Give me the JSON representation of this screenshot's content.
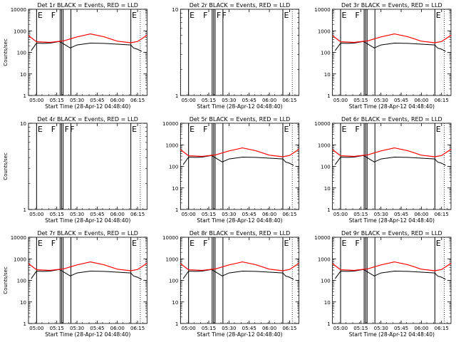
{
  "layout_note": "",
  "chart_data": [
    {
      "type": "line",
      "title": "Det 1r BLACK = Events, RED = LLD",
      "ylabel": "Counts/sec",
      "xlabel": "Start Time (28-Apr-12 04:48:40)",
      "yscale": "log",
      "ylim": [
        1,
        10000
      ],
      "yticks": [
        1,
        10,
        100,
        1000,
        10000
      ],
      "xticks": [
        "05:00",
        "05:15",
        "05:30",
        "05:45",
        "06:00",
        "06:15"
      ],
      "xrange_minutes": [
        -6,
        82
      ],
      "markers": [
        {
          "x": 0,
          "label": "E"
        },
        {
          "x": 10,
          "label": "F"
        },
        {
          "x": 70,
          "label": "E"
        }
      ],
      "vlines": [
        0,
        17.5,
        18.6,
        19.7,
        25.5,
        70
      ],
      "dotted": [
        -6,
        77
      ],
      "red": {
        "x": [
          -6,
          0,
          10,
          20,
          30,
          40,
          50,
          60,
          70,
          75,
          82
        ],
        "y": [
          600,
          310,
          290,
          340,
          520,
          720,
          530,
          330,
          280,
          320,
          620
        ]
      },
      "black": {
        "x": [
          -4,
          0,
          5,
          10,
          17,
          25,
          30,
          40,
          50,
          60,
          70,
          72,
          75,
          78
        ],
        "y": [
          120,
          270,
          260,
          270,
          320,
          160,
          220,
          270,
          260,
          240,
          220,
          160,
          140,
          110
        ]
      },
      "has_data": true
    },
    {
      "type": "line",
      "title": "Det 2r BLACK = Events, RED = LLD",
      "ylabel": "",
      "xlabel": "Start Time (28-Apr-12 04:48:40)",
      "yscale": "log",
      "ylim": [
        1,
        10
      ],
      "yticks": [
        1,
        10
      ],
      "xticks": [
        "05:00",
        "05:15",
        "05:30",
        "05:45",
        "06:00",
        "06:15"
      ],
      "xrange_minutes": [
        -6,
        82
      ],
      "markers": [
        {
          "x": 0,
          "label": "E"
        },
        {
          "x": 10,
          "label": "F"
        },
        {
          "x": 20,
          "label": "F"
        },
        {
          "x": 24,
          "label": "F"
        },
        {
          "x": 70,
          "label": "E"
        }
      ],
      "vlines": [
        0,
        17.5,
        18.6,
        19.7,
        25.5,
        70
      ],
      "dotted": [
        -6,
        77
      ],
      "has_data": false
    },
    {
      "type": "line",
      "title": "Det 3r BLACK = Events, RED = LLD",
      "ylabel": "",
      "xlabel": "Start Time (28-Apr-12 04:48:40)",
      "yscale": "log",
      "ylim": [
        1,
        10000
      ],
      "yticks": [
        1,
        10,
        100,
        1000,
        10000
      ],
      "xticks": [
        "05:00",
        "05:15",
        "05:30",
        "05:45",
        "06:00",
        "06:15"
      ],
      "xrange_minutes": [
        -6,
        82
      ],
      "markers": [
        {
          "x": 0,
          "label": "E"
        },
        {
          "x": 10,
          "label": "F"
        },
        {
          "x": 70,
          "label": "E"
        }
      ],
      "vlines": [
        0,
        17.5,
        18.6,
        19.7,
        25.5,
        70
      ],
      "dotted": [
        -6,
        77
      ],
      "red": {
        "x": [
          -6,
          0,
          10,
          20,
          30,
          40,
          50,
          60,
          70,
          75,
          82
        ],
        "y": [
          600,
          310,
          290,
          340,
          520,
          720,
          530,
          330,
          280,
          320,
          620
        ]
      },
      "black": {
        "x": [
          -4,
          0,
          5,
          10,
          17,
          25,
          30,
          40,
          50,
          60,
          70,
          72,
          75,
          78
        ],
        "y": [
          120,
          270,
          260,
          270,
          320,
          160,
          220,
          270,
          260,
          240,
          220,
          160,
          140,
          110
        ]
      },
      "has_data": true
    },
    {
      "type": "line",
      "title": "Det 4r BLACK = Events, RED = LLD",
      "ylabel": "Counts/sec",
      "xlabel": "Start Time (28-Apr-12 04:48:40)",
      "yscale": "log",
      "ylim": [
        1,
        10
      ],
      "yticks": [
        1,
        10
      ],
      "xticks": [
        "05:00",
        "05:15",
        "05:30",
        "05:45",
        "06:00",
        "06:15"
      ],
      "xrange_minutes": [
        -6,
        82
      ],
      "markers": [
        {
          "x": 0,
          "label": "E"
        },
        {
          "x": 10,
          "label": "F"
        },
        {
          "x": 20,
          "label": "F"
        },
        {
          "x": 24,
          "label": "F"
        },
        {
          "x": 70,
          "label": "E"
        }
      ],
      "vlines": [
        0,
        17.5,
        18.6,
        19.7,
        25.5,
        70
      ],
      "dotted": [
        -6,
        77
      ],
      "has_data": false
    },
    {
      "type": "line",
      "title": "Det 5r BLACK = Events, RED = LLD",
      "ylabel": "",
      "xlabel": "Start Time (28-Apr-12 04:48:40)",
      "yscale": "log",
      "ylim": [
        1,
        10000
      ],
      "yticks": [
        1,
        10,
        100,
        1000,
        10000
      ],
      "xticks": [
        "05:00",
        "05:15",
        "05:30",
        "05:45",
        "06:00",
        "06:15"
      ],
      "xrange_minutes": [
        -6,
        82
      ],
      "markers": [
        {
          "x": 0,
          "label": "E"
        },
        {
          "x": 10,
          "label": "F"
        },
        {
          "x": 70,
          "label": "E"
        }
      ],
      "vlines": [
        0,
        17.5,
        18.6,
        19.7,
        25.5,
        70
      ],
      "dotted": [
        -6,
        77
      ],
      "red": {
        "x": [
          -6,
          0,
          10,
          20,
          30,
          40,
          50,
          60,
          70,
          75,
          82
        ],
        "y": [
          600,
          310,
          290,
          340,
          520,
          720,
          530,
          330,
          280,
          320,
          620
        ]
      },
      "black": {
        "x": [
          -4,
          0,
          5,
          10,
          17,
          25,
          30,
          40,
          50,
          60,
          70,
          72,
          75,
          78
        ],
        "y": [
          120,
          270,
          260,
          270,
          320,
          160,
          220,
          270,
          260,
          240,
          220,
          160,
          140,
          110
        ]
      },
      "has_data": true
    },
    {
      "type": "line",
      "title": "Det 6r BLACK = Events, RED = LLD",
      "ylabel": "",
      "xlabel": "Start Time (28-Apr-12 04:48:40)",
      "yscale": "log",
      "ylim": [
        1,
        10000
      ],
      "yticks": [
        1,
        10,
        100,
        1000,
        10000
      ],
      "xticks": [
        "05:00",
        "05:15",
        "05:30",
        "05:45",
        "06:00",
        "06:15"
      ],
      "xrange_minutes": [
        -6,
        82
      ],
      "markers": [
        {
          "x": 0,
          "label": "E"
        },
        {
          "x": 10,
          "label": "F"
        },
        {
          "x": 70,
          "label": "E"
        }
      ],
      "vlines": [
        0,
        17.5,
        18.6,
        19.7,
        25.5,
        70
      ],
      "dotted": [
        -6,
        77
      ],
      "red": {
        "x": [
          -6,
          0,
          10,
          20,
          30,
          40,
          50,
          60,
          70,
          75,
          82
        ],
        "y": [
          600,
          310,
          290,
          340,
          520,
          720,
          530,
          330,
          280,
          320,
          620
        ]
      },
      "black": {
        "x": [
          -4,
          0,
          5,
          10,
          17,
          25,
          30,
          40,
          50,
          60,
          70,
          72,
          75,
          78
        ],
        "y": [
          120,
          270,
          260,
          270,
          320,
          160,
          220,
          270,
          260,
          240,
          220,
          160,
          140,
          110
        ]
      },
      "has_data": true
    },
    {
      "type": "line",
      "title": "Det 7r BLACK = Events, RED = LLD",
      "ylabel": "Counts/sec",
      "xlabel": "Start Time (28-Apr-12 04:48:40)",
      "yscale": "log",
      "ylim": [
        1,
        10000
      ],
      "yticks": [
        1,
        10,
        100,
        1000,
        10000
      ],
      "xticks": [
        "05:00",
        "05:15",
        "05:30",
        "05:45",
        "06:00",
        "06:15"
      ],
      "xrange_minutes": [
        -6,
        82
      ],
      "markers": [
        {
          "x": 0,
          "label": "E"
        },
        {
          "x": 10,
          "label": "F"
        },
        {
          "x": 70,
          "label": "E"
        }
      ],
      "vlines": [
        0,
        17.5,
        18.6,
        19.7,
        25.5,
        70
      ],
      "dotted": [
        -6,
        77
      ],
      "red": {
        "x": [
          -6,
          0,
          10,
          20,
          30,
          40,
          50,
          60,
          70,
          75,
          82
        ],
        "y": [
          600,
          310,
          290,
          340,
          520,
          720,
          530,
          330,
          280,
          320,
          620
        ]
      },
      "black": {
        "x": [
          -4,
          0,
          5,
          10,
          17,
          25,
          30,
          40,
          50,
          60,
          70,
          72,
          75,
          78
        ],
        "y": [
          120,
          270,
          260,
          270,
          320,
          160,
          220,
          270,
          260,
          240,
          220,
          160,
          140,
          110
        ]
      },
      "has_data": true
    },
    {
      "type": "line",
      "title": "Det 8r BLACK = Events, RED = LLD",
      "ylabel": "",
      "xlabel": "Start Time (28-Apr-12 04:48:40)",
      "yscale": "log",
      "ylim": [
        1,
        10000
      ],
      "yticks": [
        1,
        10,
        100,
        1000,
        10000
      ],
      "xticks": [
        "05:00",
        "05:15",
        "05:30",
        "05:45",
        "06:00",
        "06:15"
      ],
      "xrange_minutes": [
        -6,
        82
      ],
      "markers": [
        {
          "x": 0,
          "label": "E"
        },
        {
          "x": 10,
          "label": "F"
        },
        {
          "x": 70,
          "label": "E"
        }
      ],
      "vlines": [
        0,
        17.5,
        18.6,
        19.7,
        25.5,
        70
      ],
      "dotted": [
        -6,
        77
      ],
      "red": {
        "x": [
          -6,
          0,
          10,
          20,
          30,
          40,
          50,
          60,
          70,
          75,
          82
        ],
        "y": [
          600,
          310,
          290,
          340,
          520,
          720,
          530,
          330,
          280,
          320,
          620
        ]
      },
      "black": {
        "x": [
          -4,
          0,
          5,
          10,
          17,
          25,
          30,
          40,
          50,
          60,
          70,
          72,
          75,
          78
        ],
        "y": [
          120,
          270,
          260,
          270,
          320,
          160,
          220,
          270,
          260,
          240,
          220,
          160,
          140,
          110
        ]
      },
      "has_data": true
    },
    {
      "type": "line",
      "title": "Det 9r BLACK = Events, RED = LLD",
      "ylabel": "",
      "xlabel": "Start Time (28-Apr-12 04:48:40)",
      "yscale": "log",
      "ylim": [
        1,
        10000
      ],
      "yticks": [
        1,
        10,
        100,
        1000,
        10000
      ],
      "xticks": [
        "05:00",
        "05:15",
        "05:30",
        "05:45",
        "06:00",
        "06:15"
      ],
      "xrange_minutes": [
        -6,
        82
      ],
      "markers": [
        {
          "x": 0,
          "label": "E"
        },
        {
          "x": 10,
          "label": "F"
        },
        {
          "x": 70,
          "label": "E"
        }
      ],
      "vlines": [
        0,
        17.5,
        18.6,
        19.7,
        25.5,
        70
      ],
      "dotted": [
        -6,
        77
      ],
      "red": {
        "x": [
          -6,
          0,
          10,
          20,
          30,
          40,
          50,
          60,
          70,
          75,
          82
        ],
        "y": [
          600,
          310,
          290,
          340,
          520,
          720,
          530,
          330,
          280,
          320,
          620
        ]
      },
      "black": {
        "x": [
          -4,
          0,
          5,
          10,
          17,
          25,
          30,
          40,
          50,
          60,
          70,
          72,
          75,
          78
        ],
        "y": [
          120,
          270,
          260,
          270,
          320,
          160,
          220,
          270,
          260,
          240,
          220,
          160,
          140,
          110
        ]
      },
      "has_data": true
    }
  ],
  "colors": {
    "events": "#000000",
    "lld": "#ff0000",
    "axis": "#000000"
  }
}
